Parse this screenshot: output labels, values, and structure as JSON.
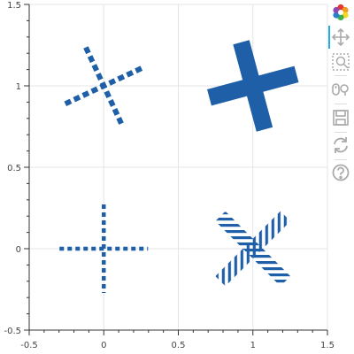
{
  "chart_data": {
    "type": "scatter",
    "title": "",
    "xlabel": "",
    "ylabel": "",
    "xlim": [
      -0.5,
      1.5
    ],
    "ylim": [
      -0.5,
      1.5
    ],
    "x_ticks": [
      -0.5,
      0,
      0.5,
      1,
      1.5
    ],
    "y_ticks": [
      -0.5,
      0,
      0.5,
      1,
      1.5
    ],
    "x_tick_labels": [
      "-0.5",
      "0",
      "0.5",
      "1",
      "1.5"
    ],
    "y_tick_labels": [
      "-0.5",
      "0",
      "0.5",
      "1",
      "1.5"
    ],
    "grid": true,
    "legend": "none",
    "color": "#1f5fa8",
    "markers": [
      {
        "shape": "x",
        "x": 0,
        "y": 1,
        "angle_deg": 20,
        "line_style": "dashed",
        "fill": "none"
      },
      {
        "shape": "cross",
        "x": 1,
        "y": 1,
        "angle_deg": -15,
        "line_style": "solid",
        "fill": "solid"
      },
      {
        "shape": "cross",
        "x": 0,
        "y": 0,
        "angle_deg": 0,
        "line_style": "dotted",
        "fill": "none"
      },
      {
        "shape": "x",
        "x": 1,
        "y": 0,
        "angle_deg": 0,
        "line_style": "solid",
        "fill": "hatched"
      }
    ]
  },
  "toolbar": {
    "logo_icon": "bokeh-logo-icon",
    "tools": [
      {
        "name": "pan-icon",
        "active": true
      },
      {
        "name": "box-zoom-icon",
        "active": false
      },
      {
        "name": "wheel-zoom-icon",
        "active": false
      },
      {
        "name": "save-icon",
        "active": false
      },
      {
        "name": "reset-icon",
        "active": false
      },
      {
        "name": "help-icon",
        "active": false
      }
    ],
    "active_color": "#26aae1",
    "icon_color": "#aaaaaa"
  }
}
